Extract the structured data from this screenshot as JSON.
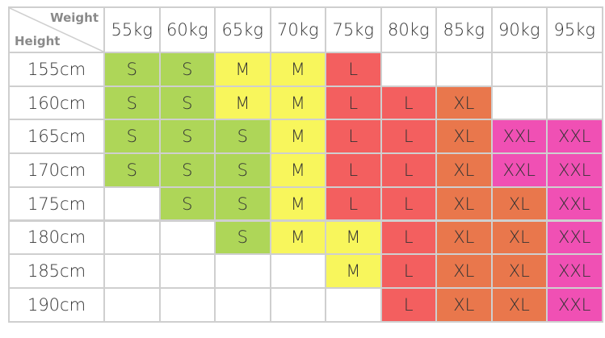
{
  "header": {
    "weight": "Weight",
    "height": "Height"
  },
  "columns": [
    "55kg",
    "60kg",
    "65kg",
    "70kg",
    "75kg",
    "80kg",
    "85kg",
    "90kg",
    "95kg"
  ],
  "size_colors": {
    "S": "#aed658",
    "M": "#f8f65c",
    "L": "#f35f5f",
    "XL": "#e9774c",
    "XXL": "#f050b4"
  },
  "rows": [
    {
      "label": "155cm",
      "cells": [
        "S",
        "S",
        "M",
        "M",
        "L",
        null,
        null,
        null,
        null
      ]
    },
    {
      "label": "160cm",
      "cells": [
        "S",
        "S",
        "M",
        "M",
        "L",
        "L",
        "XL",
        null,
        null
      ]
    },
    {
      "label": "165cm",
      "cells": [
        "S",
        "S",
        "S",
        "M",
        "L",
        "L",
        "XL",
        "XXL",
        "XXL"
      ]
    },
    {
      "label": "170cm",
      "cells": [
        "S",
        "S",
        "S",
        "M",
        "L",
        "L",
        "XL",
        "XXL",
        "XXL"
      ]
    },
    {
      "label": "175cm",
      "cells": [
        null,
        "S",
        "S",
        "M",
        "L",
        "L",
        "XL",
        "XL",
        "XXL"
      ]
    },
    {
      "label": "180cm",
      "cells": [
        null,
        null,
        "S",
        "M",
        "M",
        "L",
        "XL",
        "XL",
        "XXL"
      ]
    },
    {
      "label": "185cm",
      "cells": [
        null,
        null,
        null,
        null,
        "M",
        "L",
        "XL",
        "XL",
        "XXL"
      ]
    },
    {
      "label": "190cm",
      "cells": [
        null,
        null,
        null,
        null,
        null,
        "L",
        "XL",
        "XL",
        "XXL"
      ]
    }
  ]
}
